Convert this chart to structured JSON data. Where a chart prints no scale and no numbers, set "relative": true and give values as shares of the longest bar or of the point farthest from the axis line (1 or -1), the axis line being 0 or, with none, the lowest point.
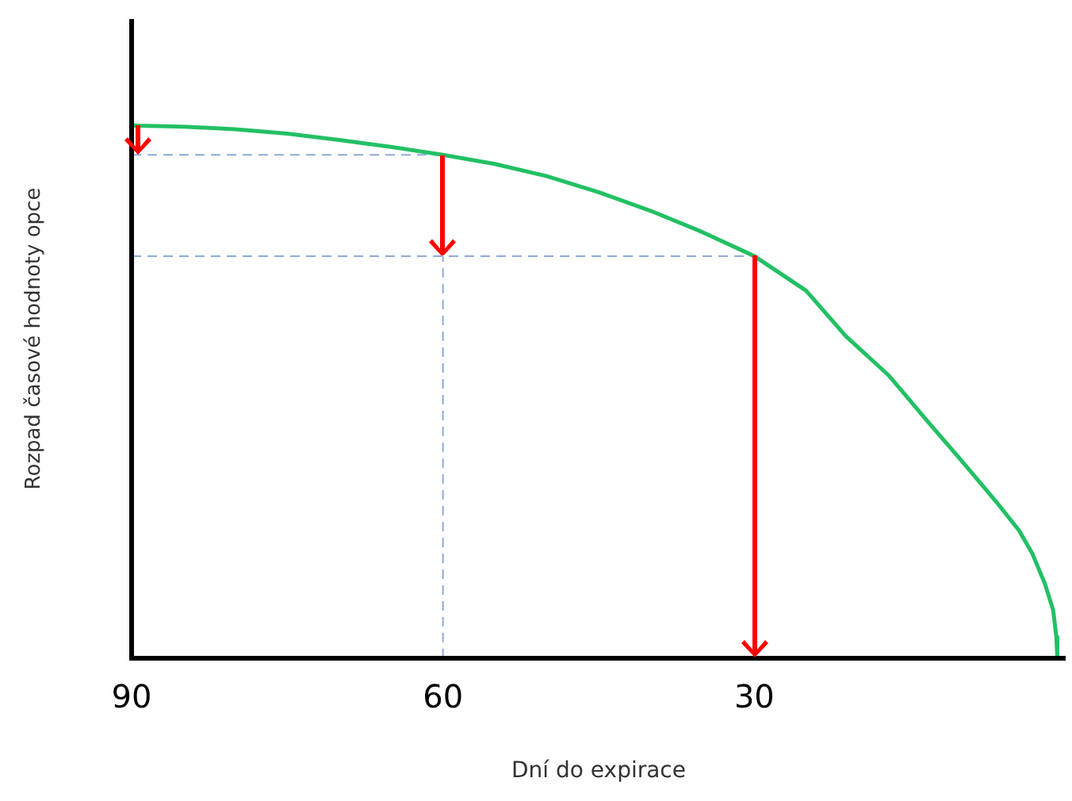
{
  "chart_data": {
    "type": "line",
    "relative": true,
    "xlabel": "Dní do expirace",
    "ylabel": "Rozpad časové hodnoty opce",
    "xlim": [
      90,
      0
    ],
    "xticks": [
      90,
      60,
      30
    ],
    "series": [
      {
        "color": "#22c064",
        "x": [
          90,
          85,
          80,
          75,
          70,
          65,
          60,
          55,
          50,
          45,
          40,
          35,
          30,
          25,
          21.2,
          17,
          13.4,
          10,
          6.7,
          4.5,
          3.2,
          2,
          1.2,
          0.9,
          0.8
        ],
        "values": [
          1,
          0.998,
          0.993,
          0.985,
          0.973,
          0.96,
          0.945,
          0.928,
          0.905,
          0.875,
          0.84,
          0.8,
          0.755,
          0.69,
          0.605,
          0.53,
          0.447,
          0.37,
          0.294,
          0.24,
          0.196,
          0.14,
          0.09,
          0.04,
          0
        ]
      }
    ],
    "ref_lines": [
      {
        "axis": "y",
        "value": 0.945,
        "color": "#8eaadb",
        "line_style": "dashed"
      },
      {
        "axis": "y",
        "value": 0.755,
        "color": "#8eaadb",
        "line_style": "dashed"
      },
      {
        "axis": "x",
        "value": 60,
        "color": "#8eaadb",
        "line_style": "dashed"
      }
    ],
    "grid": false,
    "legend": false,
    "marker": "none",
    "line_style": "solid"
  }
}
